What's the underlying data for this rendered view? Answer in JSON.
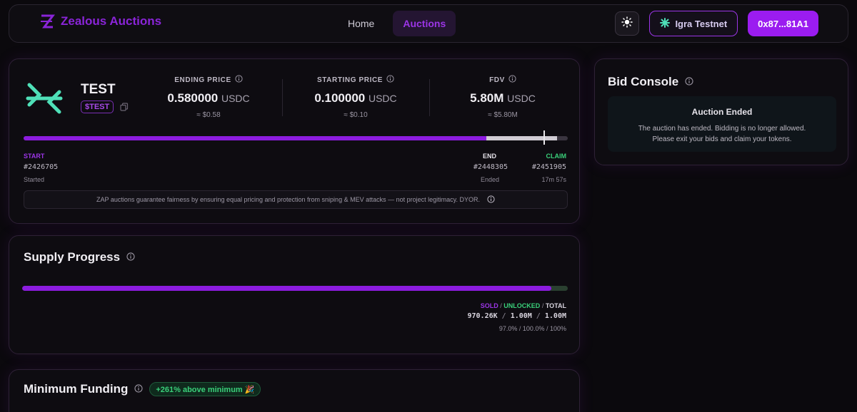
{
  "nav": {
    "brand": "Zealous Auctions",
    "links": [
      "Home",
      "Auctions"
    ],
    "network": "Igra Testnet",
    "wallet": "0x87...81A1"
  },
  "auction": {
    "token_name": "TEST",
    "token_symbol": "$TEST",
    "stats": [
      {
        "label": "ENDING PRICE",
        "value": "0.580000",
        "unit": "USDC",
        "sub": "≈ $0.58"
      },
      {
        "label": "STARTING PRICE",
        "value": "0.100000",
        "unit": "USDC",
        "sub": "≈ $0.10"
      },
      {
        "label": "FDV",
        "value": "5.80M",
        "unit": "USDC",
        "sub": "≈ $5.80M"
      }
    ],
    "timeline": {
      "start_label": "START",
      "start_block": "#2426705",
      "start_status": "Started",
      "end_label": "END",
      "end_block": "#2448305",
      "end_status": "Ended",
      "claim_label": "CLAIM",
      "claim_block": "#2451905",
      "claim_status": "17m 57s",
      "progress_fraction": 0.85,
      "claim_fraction": 0.13
    },
    "notice": "ZAP auctions guarantee fairness by ensuring equal pricing and protection from sniping & MEV attacks — not project legitimacy. DYOR."
  },
  "bid_console": {
    "title": "Bid Console",
    "status_title": "Auction Ended",
    "message_line1": "The auction has ended. Bidding is no longer allowed.",
    "message_line2": "Please exit your bids and claim your tokens."
  },
  "supply": {
    "title": "Supply Progress",
    "sold_fraction": 0.97,
    "legend_sold": "SOLD",
    "legend_unlocked": "UNLOCKED",
    "legend_total": "TOTAL",
    "sold": "970.26K",
    "unlocked": "1.00M",
    "total": "1.00M",
    "sold_pct": "97.0%",
    "unlocked_pct": "100.0%",
    "total_pct": "100%"
  },
  "funding": {
    "title": "Minimum Funding",
    "badge": "+261% above minimum 🎉"
  },
  "colors": {
    "accent": "#9b1cf0",
    "green": "#3ad07a",
    "background": "#0b090d"
  }
}
